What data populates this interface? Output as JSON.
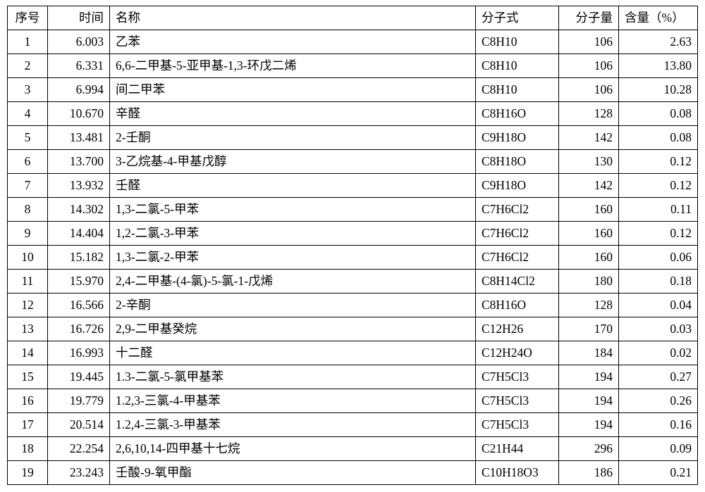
{
  "table": {
    "columns": {
      "seq": "序号",
      "time": "时间",
      "name": "名称",
      "formula": "分子式",
      "mw": "分子量",
      "pct": "含量（%）"
    },
    "rows": [
      {
        "seq": "1",
        "time": "6.003",
        "name": "乙苯",
        "formula": "C8H10",
        "mw": "106",
        "pct": "2.63"
      },
      {
        "seq": "2",
        "time": "6.331",
        "name": "6,6-二甲基-5-亚甲基-1,3-环戊二烯",
        "formula": "C8H10",
        "mw": "106",
        "pct": "13.80"
      },
      {
        "seq": "3",
        "time": "6.994",
        "name": "间二甲苯",
        "formula": "C8H10",
        "mw": "106",
        "pct": "10.28"
      },
      {
        "seq": "4",
        "time": "10.670",
        "name": "辛醛",
        "formula": "C8H16O",
        "mw": "128",
        "pct": "0.08"
      },
      {
        "seq": "5",
        "time": "13.481",
        "name": "2-壬酮",
        "formula": "C9H18O",
        "mw": "142",
        "pct": "0.08"
      },
      {
        "seq": "6",
        "time": "13.700",
        "name": "3-乙烷基-4-甲基戊醇",
        "formula": "C8H18O",
        "mw": "130",
        "pct": "0.12"
      },
      {
        "seq": "7",
        "time": "13.932",
        "name": "壬醛",
        "formula": "C9H18O",
        "mw": "142",
        "pct": "0.12"
      },
      {
        "seq": "8",
        "time": "14.302",
        "name": "1,3-二氯-5-甲苯",
        "formula": "C7H6Cl2",
        "mw": "160",
        "pct": "0.11"
      },
      {
        "seq": "9",
        "time": "14.404",
        "name": "1,2-二氯-3-甲苯",
        "formula": "C7H6Cl2",
        "mw": "160",
        "pct": "0.12"
      },
      {
        "seq": "10",
        "time": "15.182",
        "name": "1,3-二氯-2-甲苯",
        "formula": "C7H6Cl2",
        "mw": "160",
        "pct": "0.06"
      },
      {
        "seq": "11",
        "time": "15.970",
        "name": "2,4-二甲基-(4-氯)-5-氯-1-戊烯",
        "formula": "C8H14Cl2",
        "mw": "180",
        "pct": "0.18"
      },
      {
        "seq": "12",
        "time": "16.566",
        "name": "2-辛酮",
        "formula": "C8H16O",
        "mw": "128",
        "pct": "0.04"
      },
      {
        "seq": "13",
        "time": "16.726",
        "name": "2,9-二甲基癸烷",
        "formula": "C12H26",
        "mw": "170",
        "pct": "0.03"
      },
      {
        "seq": "14",
        "time": "16.993",
        "name": "十二醛",
        "formula": "C12H24O",
        "mw": "184",
        "pct": "0.02"
      },
      {
        "seq": "15",
        "time": "19.445",
        "name": "1.3-二氯-5-氯甲基苯",
        "formula": "C7H5Cl3",
        "mw": "194",
        "pct": "0.27"
      },
      {
        "seq": "16",
        "time": "19.779",
        "name": "1.2,3-三氯-4-甲基苯",
        "formula": "C7H5Cl3",
        "mw": "194",
        "pct": "0.26"
      },
      {
        "seq": "17",
        "time": "20.514",
        "name": "1.2,4-三氯-3-甲基苯",
        "formula": "C7H5Cl3",
        "mw": "194",
        "pct": "0.16"
      },
      {
        "seq": "18",
        "time": "22.254",
        "name": "2,6,10,14-四甲基十七烷",
        "formula": "C21H44",
        "mw": "296",
        "pct": "0.09"
      },
      {
        "seq": "19",
        "time": "23.243",
        "name": "壬酸-9-氧甲酯",
        "formula": "C10H18O3",
        "mw": "186",
        "pct": "0.21"
      }
    ]
  }
}
